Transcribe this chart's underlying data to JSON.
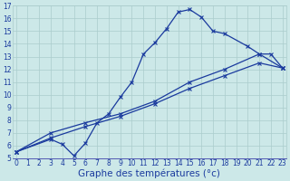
{
  "xlabel": "Graphe des températures (°c)",
  "xlim": [
    0,
    23
  ],
  "ylim": [
    5,
    17
  ],
  "xticks": [
    0,
    1,
    2,
    3,
    4,
    5,
    6,
    7,
    8,
    9,
    10,
    11,
    12,
    13,
    14,
    15,
    16,
    17,
    18,
    19,
    20,
    21,
    22,
    23
  ],
  "yticks": [
    5,
    6,
    7,
    8,
    9,
    10,
    11,
    12,
    13,
    14,
    15,
    16,
    17
  ],
  "bg_color": "#cce8e8",
  "grid_color": "#aacccc",
  "line_color": "#1a3a9e",
  "line1_x": [
    0,
    3,
    4,
    5,
    6,
    7,
    8,
    9,
    10,
    11,
    12,
    13,
    14,
    15,
    16,
    17,
    18,
    20,
    21,
    22,
    23
  ],
  "line1_y": [
    5.5,
    6.5,
    6.1,
    5.2,
    6.2,
    7.8,
    8.5,
    9.8,
    11.0,
    13.2,
    14.1,
    15.2,
    16.5,
    16.7,
    16.1,
    15.0,
    14.8,
    13.8,
    13.2,
    13.2,
    12.1
  ],
  "line2_x": [
    0,
    3,
    6,
    9,
    12,
    15,
    18,
    21,
    23
  ],
  "line2_y": [
    5.5,
    6.6,
    7.5,
    8.3,
    9.3,
    10.5,
    11.5,
    12.5,
    12.1
  ],
  "line3_x": [
    0,
    3,
    6,
    9,
    12,
    15,
    18,
    21,
    23
  ],
  "line3_y": [
    5.5,
    7.0,
    7.8,
    8.5,
    9.5,
    11.0,
    12.0,
    13.2,
    12.1
  ],
  "font_color": "#1a3a9e",
  "tick_fontsize": 5.5,
  "xlabel_fontsize": 7.5
}
